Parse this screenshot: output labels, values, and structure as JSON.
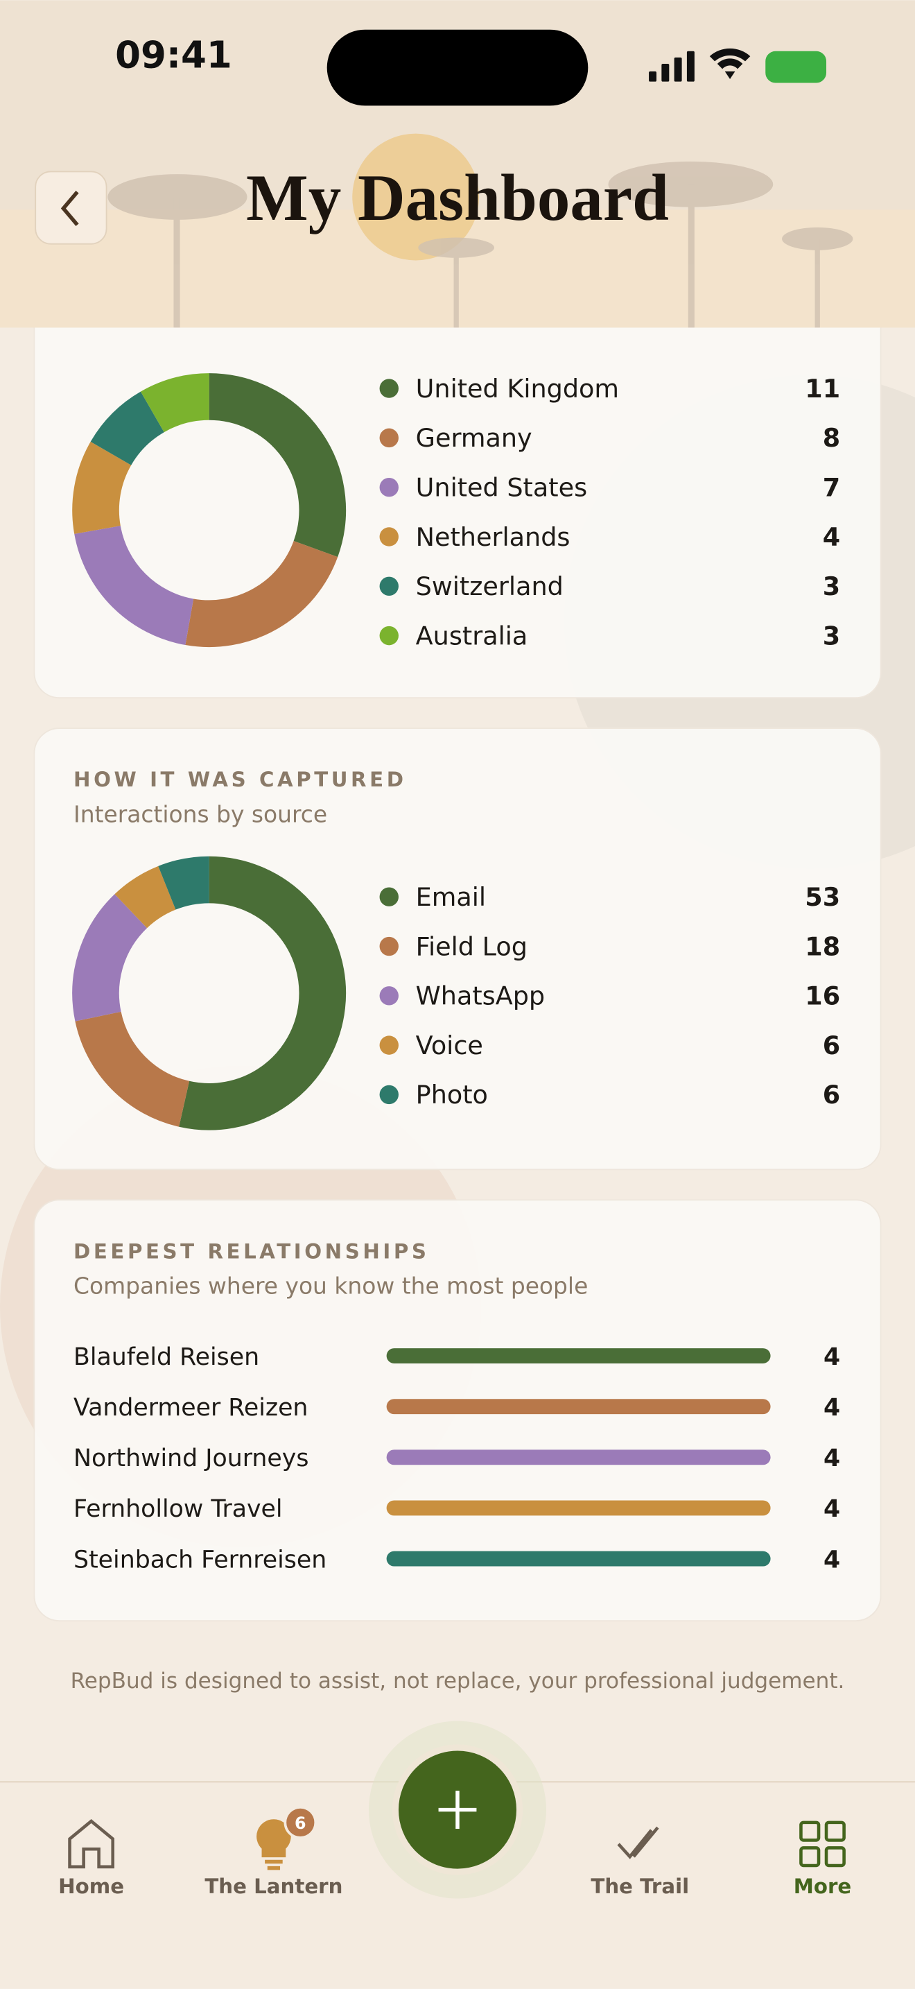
{
  "status_bar": {
    "time": "09:41"
  },
  "header": {
    "title": "My Dashboard"
  },
  "cards": [
    {
      "type": "donut",
      "items": [
        {
          "label": "United Kingdom",
          "value": 11,
          "color": "#4a6e37"
        },
        {
          "label": "Germany",
          "value": 8,
          "color": "#b8784a"
        },
        {
          "label": "United States",
          "value": 7,
          "color": "#9b7bb8"
        },
        {
          "label": "Netherlands",
          "value": 4,
          "color": "#c9903f"
        },
        {
          "label": "Switzerland",
          "value": 3,
          "color": "#2e7a6b"
        },
        {
          "label": "Australia",
          "value": 3,
          "color": "#7bb32e"
        }
      ]
    },
    {
      "type": "donut",
      "title": "HOW IT WAS CAPTURED",
      "subtitle": "Interactions by source",
      "items": [
        {
          "label": "Email",
          "value": 53,
          "color": "#4a6e37"
        },
        {
          "label": "Field Log",
          "value": 18,
          "color": "#b8784a"
        },
        {
          "label": "WhatsApp",
          "value": 16,
          "color": "#9b7bb8"
        },
        {
          "label": "Voice",
          "value": 6,
          "color": "#c9903f"
        },
        {
          "label": "Photo",
          "value": 6,
          "color": "#2e7a6b"
        }
      ]
    },
    {
      "type": "bars",
      "title": "DEEPEST RELATIONSHIPS",
      "subtitle": "Companies where you know the most people",
      "items": [
        {
          "label": "Blaufeld Reisen",
          "value": 4,
          "color": "#4a6e37"
        },
        {
          "label": "Vandermeer Reizen",
          "value": 4,
          "color": "#b8784a"
        },
        {
          "label": "Northwind Journeys",
          "value": 4,
          "color": "#9b7bb8"
        },
        {
          "label": "Fernhollow Travel",
          "value": 4,
          "color": "#c9903f"
        },
        {
          "label": "Steinbach Fernreisen",
          "value": 4,
          "color": "#2e7a6b"
        }
      ]
    }
  ],
  "disclaimer": "RepBud is designed to assist, not replace, your professional judgement.",
  "nav": [
    {
      "label": "Home"
    },
    {
      "label": "The Lantern",
      "badge": 6
    },
    {
      "label": "The Trail"
    },
    {
      "label": "More"
    }
  ]
}
